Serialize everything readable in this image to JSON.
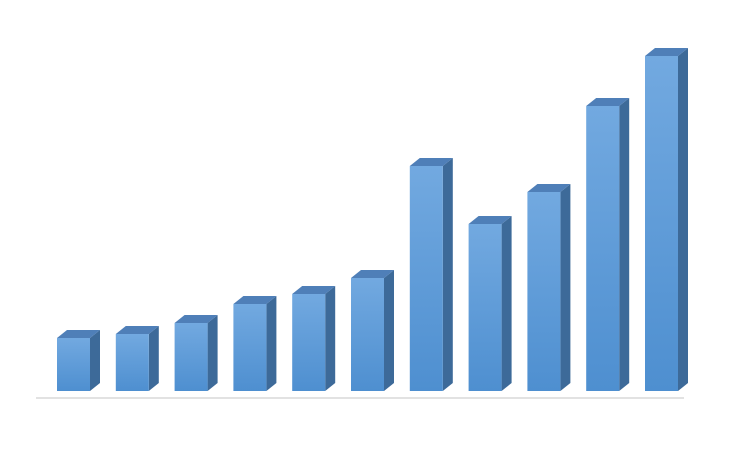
{
  "chart_data": {
    "type": "bar",
    "categories": [
      "",
      "",
      "",
      "",
      "",
      "",
      "",
      "",
      "",
      "",
      ""
    ],
    "values": [
      53,
      57,
      68,
      87,
      97,
      113,
      225,
      167,
      199,
      285,
      335
    ],
    "title": "",
    "xlabel": "",
    "ylabel": "",
    "ylim": [
      0,
      350
    ],
    "grid": false,
    "legend": "none",
    "style": "3d-column"
  },
  "colors": {
    "bar_front": "#5B9BD5",
    "bar_front_light": "#6FA8E0",
    "bar_side": "#3D6A99",
    "bar_top": "#4F7FB8",
    "axis": "#D9D9D9"
  }
}
